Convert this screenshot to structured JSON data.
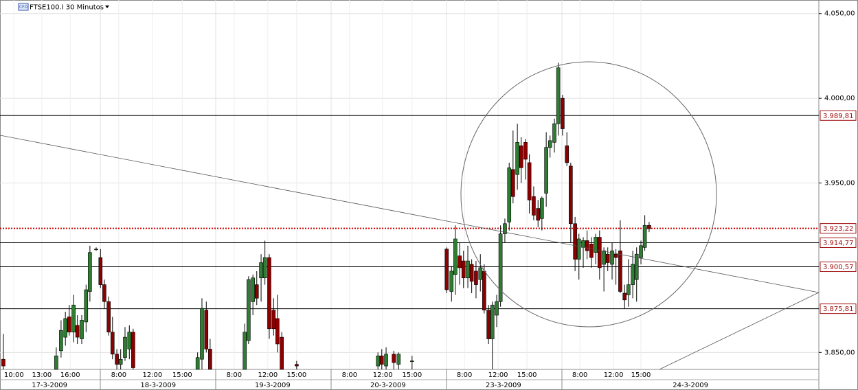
{
  "chart_data": {
    "type": "candlestick",
    "title": "FTSE100.I 30 Minutos",
    "icon_text": "CFD",
    "ylim": [
      3840,
      4058
    ],
    "xlim": [
      0,
      170.3
    ],
    "yticks": [
      {
        "value": 3850,
        "label": "3.850,00"
      },
      {
        "value": 3950,
        "label": "3.950,00"
      },
      {
        "value": 4000,
        "label": "4.000,00"
      },
      {
        "value": 4050,
        "label": "4.050,00"
      }
    ],
    "xticks": [
      {
        "value": 2.9,
        "label": "10:00"
      },
      {
        "value": 8.7,
        "label": "13:00"
      },
      {
        "value": 14.6,
        "label": "16:00"
      },
      {
        "value": 24.7,
        "label": "8:00"
      },
      {
        "value": 31.7,
        "label": "12:00"
      },
      {
        "value": 37.9,
        "label": "15:00"
      },
      {
        "value": 48.7,
        "label": "8:00"
      },
      {
        "value": 55.7,
        "label": "12:00"
      },
      {
        "value": 61.7,
        "label": "15:00"
      },
      {
        "value": 72.7,
        "label": "8:00"
      },
      {
        "value": 79.6,
        "label": "12:00"
      },
      {
        "value": 85.7,
        "label": "15:00"
      },
      {
        "value": 96.6,
        "label": "8:00"
      },
      {
        "value": 103.6,
        "label": "12:00"
      },
      {
        "value": 109.6,
        "label": "15:00"
      },
      {
        "value": 120.6,
        "label": "8:00"
      },
      {
        "value": 127.6,
        "label": "12:00"
      },
      {
        "value": 133.3,
        "label": "15:00"
      }
    ],
    "dates": [
      {
        "value": 10.3,
        "label": "17-3-2009"
      },
      {
        "value": 32.9,
        "label": "18-3-2009"
      },
      {
        "value": 56.7,
        "label": "19-3-2009"
      },
      {
        "value": 80.7,
        "label": "20-3-2009"
      },
      {
        "value": 104.7,
        "label": "23-3-2009"
      },
      {
        "value": 143.6,
        "label": "24-3-2009"
      }
    ],
    "levels": [
      {
        "value": 3989.81,
        "label": "3.989,81"
      },
      {
        "value": 3914.77,
        "label": "3.914,77"
      },
      {
        "value": 3900.57,
        "label": "3.900,57"
      },
      {
        "value": 3875.81,
        "label": "3.875,81"
      }
    ],
    "current": {
      "value": 3923.22,
      "label": "3.923,22",
      "color": "#cc0000"
    },
    "up_color": "#2e7d32",
    "down_color": "#8b0000",
    "x": [
      0.7,
      11.7,
      12.7,
      13.6,
      14.4,
      15.3,
      16.1,
      17,
      17.9,
      18.7,
      20,
      20.9,
      21.7,
      22.6,
      23.4,
      24.3,
      25.1,
      26,
      26.9,
      27.7,
      41.1,
      42,
      42.9,
      43.7,
      50.9,
      51.7,
      52.6,
      53.4,
      54.3,
      55.1,
      56,
      56.9,
      57.7,
      58.6,
      61.7,
      78.6,
      79.4,
      80.3,
      81.9,
      82.9,
      85.7,
      92.9,
      93.9,
      94.7,
      95.6,
      96.4,
      97.3,
      98.1,
      99,
      99.9,
      100.7,
      101.6,
      102.4,
      103.3,
      104.1,
      105,
      105.9,
      106.7,
      107.6,
      108.4,
      109.3,
      110.1,
      111,
      111.9,
      112.7,
      113.6,
      114.4,
      115.3,
      116.1,
      117,
      117.9,
      118.7,
      119.6,
      120.4,
      121.3,
      122.1,
      123,
      123.9,
      124.7,
      125.6,
      126.4,
      127.3,
      128.1,
      129,
      129.9,
      130.7,
      131.6,
      132.4,
      133.3,
      134.1,
      135
    ],
    "open": [
      3846,
      3840,
      3851,
      3859,
      3871,
      3862,
      3866,
      3858,
      3868,
      3886,
      3911,
      3906,
      3890,
      3880,
      3862,
      3849,
      3843,
      3847,
      3852,
      3862,
      3840,
      3846,
      3875,
      3852,
      3840,
      3857,
      3880,
      3890,
      3894,
      3894,
      3906,
      3875,
      3870,
      3859,
      3843,
      3842,
      3848,
      3842,
      3849,
      3843,
      3845,
      3911,
      3886,
      3896,
      3907,
      3904,
      3894,
      3902,
      3898,
      3893,
      3898,
      3875,
      3858,
      3872,
      3880,
      3920,
      3927,
      3958,
      3955,
      3972,
      3974,
      3962,
      3942,
      3935,
      3929,
      3944,
      3971,
      3974,
      3985,
      4000,
      3972,
      3960,
      3926,
      3905,
      3912,
      3916,
      3914,
      3909,
      3918,
      3902,
      3908,
      3902,
      3908,
      3910,
      3885,
      3884,
      3890,
      3893,
      3906,
      3912,
      3925
    ],
    "high": [
      3861,
      3853,
      3869,
      3874,
      3878,
      3884,
      3872,
      3872,
      3890,
      3913,
      3912,
      3911,
      3893,
      3883,
      3871,
      3852,
      3852,
      3865,
      3866,
      3864,
      3850,
      3882,
      3880,
      3858,
      3867,
      3895,
      3896,
      3898,
      3908,
      3916,
      3908,
      3882,
      3884,
      3862,
      3845,
      3850,
      3852,
      3853,
      3851,
      3850,
      3848,
      3912,
      3901,
      3925,
      3915,
      3910,
      3913,
      3905,
      3904,
      3908,
      3902,
      3878,
      3880,
      3884,
      3925,
      3929,
      3962,
      3981,
      3985,
      3977,
      3976,
      3967,
      3948,
      3940,
      3942,
      3980,
      3978,
      3988,
      4021,
      4002,
      3980,
      3962,
      3930,
      3920,
      3918,
      3922,
      3918,
      3920,
      3922,
      3912,
      3912,
      3915,
      3911,
      3928,
      3890,
      3905,
      3910,
      3912,
      3916,
      3931,
      3927
    ],
    "low": [
      3840,
      3840,
      3847,
      3854,
      3860,
      3856,
      3855,
      3855,
      3862,
      3880,
      3910,
      3888,
      3876,
      3860,
      3846,
      3840,
      3840,
      3845,
      3846,
      3840,
      3840,
      3840,
      3850,
      3840,
      3840,
      3855,
      3872,
      3878,
      3880,
      3890,
      3858,
      3860,
      3850,
      3840,
      3840,
      3840,
      3840,
      3840,
      3840,
      3840,
      3840,
      3885,
      3880,
      3884,
      3890,
      3888,
      3888,
      3885,
      3882,
      3886,
      3873,
      3855,
      3840,
      3865,
      3877,
      3915,
      3922,
      3938,
      3946,
      3950,
      3952,
      3932,
      3928,
      3924,
      3922,
      3936,
      3965,
      3968,
      3978,
      3978,
      3960,
      3915,
      3898,
      3893,
      3900,
      3905,
      3900,
      3902,
      3893,
      3886,
      3898,
      3893,
      3890,
      3885,
      3876,
      3877,
      3882,
      3880,
      3902,
      3910,
      3921
    ],
    "close": [
      3842,
      3848,
      3863,
      3870,
      3862,
      3878,
      3859,
      3869,
      3887,
      3909,
      3911,
      3890,
      3880,
      3862,
      3849,
      3843,
      3846,
      3859,
      3862,
      3841,
      3847,
      3876,
      3852,
      3840,
      3862,
      3893,
      3894,
      3882,
      3903,
      3906,
      3864,
      3864,
      3855,
      3840,
      3842,
      3848,
      3843,
      3849,
      3844,
      3849,
      3845,
      3887,
      3898,
      3917,
      3900,
      3894,
      3904,
      3892,
      3890,
      3900,
      3875,
      3858,
      3878,
      3880,
      3920,
      3926,
      3959,
      3942,
      3974,
      3959,
      3964,
      3940,
      3931,
      3928,
      3941,
      3971,
      3975,
      3985,
      4018,
      3982,
      3962,
      3926,
      3905,
      3917,
      3916,
      3910,
      3906,
      3918,
      3900,
      3910,
      3903,
      3910,
      3906,
      3886,
      3881,
      3890,
      3902,
      3908,
      3913,
      3925,
      3923
    ]
  }
}
